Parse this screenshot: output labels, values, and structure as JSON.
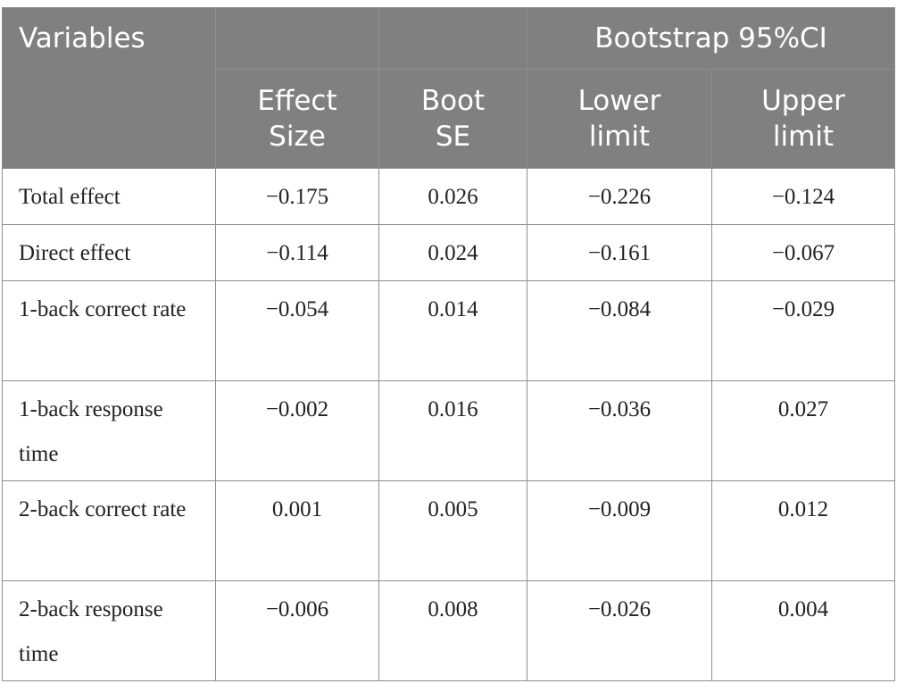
{
  "table": {
    "header": {
      "variables": "Variables",
      "ci_group": "Bootstrap 95%CI",
      "effect_size": [
        "Effect",
        "Size"
      ],
      "boot_se": [
        "Boot",
        "SE"
      ],
      "lower_limit": [
        "Lower",
        "limit"
      ],
      "upper_limit": [
        "Upper",
        "limit"
      ]
    },
    "rows": [
      {
        "label": "Total effect",
        "effect_size": "−0.175",
        "boot_se": "0.026",
        "lower": "−0.226",
        "upper": "−0.124"
      },
      {
        "label": "Direct effect",
        "effect_size": "−0.114",
        "boot_se": "0.024",
        "lower": "−0.161",
        "upper": "−0.067"
      },
      {
        "label": "1-back correct rate",
        "effect_size": "−0.054",
        "boot_se": "0.014",
        "lower": "−0.084",
        "upper": "−0.029"
      },
      {
        "label": "1-back response time",
        "effect_size": "−0.002",
        "boot_se": "0.016",
        "lower": "−0.036",
        "upper": "0.027"
      },
      {
        "label": "2-back correct rate",
        "effect_size": "0.001",
        "boot_se": "0.005",
        "lower": "−0.009",
        "upper": "0.012"
      },
      {
        "label": "2-back response time",
        "effect_size": "−0.006",
        "boot_se": "0.008",
        "lower": "−0.026",
        "upper": "0.004"
      }
    ]
  },
  "colors": {
    "header_bg": "#808080",
    "header_text": "#ffffff",
    "border": "#8f8f8f",
    "body_text": "#222222"
  }
}
